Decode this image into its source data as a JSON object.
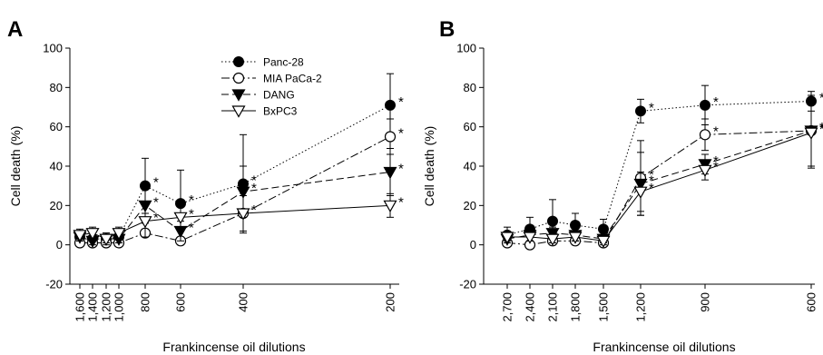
{
  "chart_data": [
    {
      "panel": "A",
      "type": "line",
      "xlabel": "Frankincense oil dilutions",
      "ylabel": "Cell death (%)",
      "ylim": [
        -20,
        100
      ],
      "yticks": [
        "100",
        "80",
        "60",
        "40",
        "20",
        "0",
        "-20"
      ],
      "xtick_labels": [
        "1,600",
        "1,400",
        "1,200",
        "1,000",
        "800",
        "600",
        "400",
        "200"
      ],
      "x": [
        1600,
        1400,
        1200,
        1000,
        800,
        600,
        400,
        200
      ],
      "legend_position": "top-center",
      "series": [
        {
          "name": "Panc-28",
          "marker": "filled-circle",
          "line": "dotted",
          "values": [
            4,
            3,
            3,
            4,
            30,
            21,
            31,
            71
          ],
          "errors": [
            3,
            3,
            3,
            3,
            14,
            17,
            25,
            16
          ],
          "significant": [
            false,
            false,
            false,
            false,
            true,
            true,
            true,
            true
          ]
        },
        {
          "name": "MIA PaCa-2",
          "marker": "open-circle",
          "line": "dash-dot",
          "values": [
            1,
            1,
            1,
            1,
            6,
            2,
            16,
            55
          ],
          "errors": [
            1,
            1,
            1,
            1,
            2,
            2,
            9,
            9
          ],
          "significant": [
            false,
            false,
            false,
            false,
            false,
            false,
            false,
            true
          ]
        },
        {
          "name": "DANG",
          "marker": "filled-triangle-down",
          "line": "dashed",
          "values": [
            4,
            2,
            3,
            3,
            20,
            7,
            27,
            37
          ],
          "errors": [
            2,
            2,
            2,
            2,
            9,
            5,
            13,
            12
          ],
          "significant": [
            false,
            false,
            false,
            false,
            true,
            true,
            true,
            true
          ]
        },
        {
          "name": "BxPC3",
          "marker": "open-triangle-down",
          "line": "solid",
          "values": [
            5,
            6,
            3,
            6,
            12,
            14,
            16,
            20
          ],
          "errors": [
            3,
            3,
            3,
            3,
            8,
            6,
            9,
            6
          ],
          "significant": [
            false,
            false,
            false,
            false,
            true,
            true,
            true,
            true
          ]
        }
      ]
    },
    {
      "panel": "B",
      "type": "line",
      "xlabel": "Frankincense oil dilutions",
      "ylabel": "Cell death (%)",
      "ylim": [
        -20,
        100
      ],
      "yticks": [
        "100",
        "80",
        "60",
        "40",
        "20",
        "0",
        "-20"
      ],
      "xtick_labels": [
        "2,700",
        "2,400",
        "2,100",
        "1,800",
        "1,500",
        "1,200",
        "900",
        "600"
      ],
      "x": [
        2700,
        2400,
        2100,
        1800,
        1500,
        1200,
        900,
        600
      ],
      "series": [
        {
          "name": "Panc-28",
          "marker": "filled-circle",
          "line": "dotted",
          "values": [
            5,
            8,
            12,
            10,
            8,
            68,
            71,
            73
          ],
          "errors": [
            4,
            6,
            11,
            6,
            5,
            6,
            10,
            5
          ],
          "significant": [
            false,
            false,
            false,
            false,
            false,
            true,
            true,
            true
          ]
        },
        {
          "name": "MIA PaCa-2",
          "marker": "open-circle",
          "line": "dash-dot",
          "values": [
            1,
            0,
            2,
            2,
            1,
            34,
            56,
            58
          ],
          "errors": [
            1,
            1,
            2,
            2,
            1,
            19,
            8,
            18
          ],
          "significant": [
            false,
            false,
            false,
            false,
            false,
            true,
            true,
            true
          ]
        },
        {
          "name": "DANG",
          "marker": "filled-triangle-down",
          "line": "dashed",
          "values": [
            3,
            5,
            6,
            5,
            3,
            31,
            41,
            58
          ],
          "errors": [
            2,
            3,
            3,
            3,
            2,
            16,
            5,
            18
          ],
          "significant": [
            false,
            false,
            false,
            false,
            false,
            true,
            true,
            true
          ]
        },
        {
          "name": "BxPC3",
          "marker": "open-triangle-down",
          "line": "solid",
          "values": [
            4,
            4,
            3,
            4,
            2,
            27,
            38,
            57
          ],
          "errors": [
            2,
            2,
            2,
            2,
            2,
            10,
            5,
            18
          ],
          "significant": [
            false,
            false,
            false,
            false,
            false,
            true,
            true,
            true
          ]
        }
      ]
    }
  ]
}
